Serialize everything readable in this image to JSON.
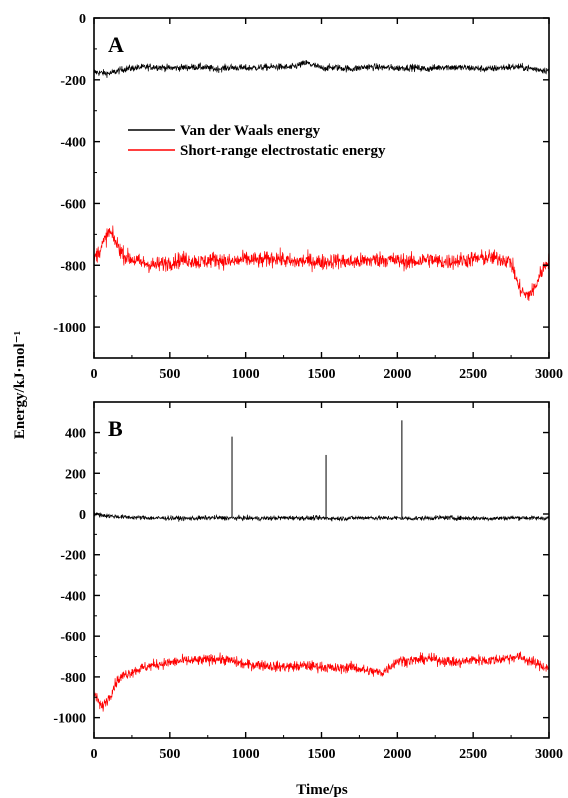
{
  "figure": {
    "ylabel": "Energy/kJ·mol⁻¹",
    "xlabel": "Time/ps"
  },
  "legend": {
    "items": [
      {
        "label": "Van der Waals energy",
        "color": "#000000"
      },
      {
        "label": "Short-range electrostatic energy",
        "color": "#ff0000"
      }
    ]
  },
  "chart_data": [
    {
      "type": "line",
      "panel_label": "A",
      "xlim": [
        0,
        3000
      ],
      "ylim": [
        -1100,
        0
      ],
      "xticks": [
        0,
        500,
        1000,
        1500,
        2000,
        2500,
        3000
      ],
      "yticks": [
        0,
        -200,
        -400,
        -600,
        -800,
        -1000
      ],
      "grid": false,
      "legend_position": "upper-left",
      "series": [
        {
          "name": "Van der Waals energy",
          "color": "#000000",
          "x": [
            0,
            100,
            200,
            300,
            400,
            500,
            600,
            700,
            800,
            900,
            1000,
            1100,
            1200,
            1300,
            1400,
            1500,
            1600,
            1700,
            1800,
            1900,
            2000,
            2100,
            2200,
            2300,
            2400,
            2500,
            2600,
            2700,
            2800,
            2900,
            3000
          ],
          "y": [
            -175,
            -180,
            -165,
            -160,
            -158,
            -162,
            -160,
            -158,
            -165,
            -160,
            -162,
            -160,
            -158,
            -160,
            -145,
            -162,
            -160,
            -165,
            -158,
            -160,
            -162,
            -160,
            -165,
            -158,
            -160,
            -162,
            -165,
            -160,
            -158,
            -165,
            -170
          ]
        },
        {
          "name": "Short-range electrostatic energy",
          "color": "#ff0000",
          "x": [
            0,
            50,
            100,
            150,
            200,
            300,
            400,
            500,
            600,
            700,
            800,
            900,
            1000,
            1100,
            1200,
            1300,
            1400,
            1500,
            1600,
            1700,
            1800,
            1900,
            2000,
            2100,
            2200,
            2300,
            2400,
            2500,
            2600,
            2700,
            2750,
            2800,
            2850,
            2900,
            2950,
            3000
          ],
          "y": [
            -780,
            -740,
            -690,
            -730,
            -770,
            -790,
            -800,
            -790,
            -780,
            -790,
            -780,
            -790,
            -780,
            -785,
            -775,
            -790,
            -785,
            -790,
            -785,
            -790,
            -785,
            -780,
            -785,
            -790,
            -780,
            -790,
            -785,
            -780,
            -775,
            -780,
            -790,
            -870,
            -900,
            -880,
            -820,
            -780
          ]
        }
      ]
    },
    {
      "type": "line",
      "panel_label": "B",
      "xlim": [
        0,
        3000
      ],
      "ylim": [
        -1100,
        550
      ],
      "xticks": [
        0,
        500,
        1000,
        1500,
        2000,
        2500,
        3000
      ],
      "yticks": [
        400,
        200,
        0,
        -200,
        -400,
        -600,
        -800,
        -1000
      ],
      "grid": false,
      "series": [
        {
          "name": "Van der Waals energy",
          "color": "#000000",
          "x": [
            0,
            100,
            200,
            300,
            400,
            500,
            600,
            700,
            800,
            900,
            1000,
            1100,
            1200,
            1300,
            1400,
            1500,
            1600,
            1700,
            1800,
            1900,
            2000,
            2100,
            2200,
            2300,
            2400,
            2500,
            2600,
            2700,
            2800,
            2900,
            3000
          ],
          "y": [
            0,
            -10,
            -15,
            -18,
            -20,
            -20,
            -22,
            -20,
            -18,
            -20,
            -20,
            -22,
            -20,
            -18,
            -20,
            -20,
            -22,
            -20,
            -18,
            -20,
            -20,
            -22,
            -20,
            -18,
            -20,
            -20,
            -22,
            -20,
            -18,
            -20,
            -20
          ],
          "spikes": [
            {
              "x": 910,
              "y": 380
            },
            {
              "x": 1530,
              "y": 290
            },
            {
              "x": 2030,
              "y": 460
            }
          ]
        },
        {
          "name": "Short-range electrostatic energy",
          "color": "#ff0000",
          "x": [
            0,
            50,
            100,
            150,
            200,
            300,
            400,
            500,
            600,
            700,
            800,
            900,
            1000,
            1100,
            1200,
            1300,
            1400,
            1500,
            1600,
            1700,
            1800,
            1900,
            2000,
            2100,
            2200,
            2300,
            2400,
            2500,
            2600,
            2700,
            2800,
            2900,
            3000
          ],
          "y": [
            -880,
            -950,
            -900,
            -820,
            -790,
            -760,
            -740,
            -730,
            -720,
            -720,
            -710,
            -720,
            -740,
            -740,
            -750,
            -750,
            -745,
            -750,
            -760,
            -750,
            -770,
            -780,
            -720,
            -720,
            -710,
            -720,
            -730,
            -715,
            -720,
            -710,
            -700,
            -730,
            -760
          ]
        }
      ]
    }
  ]
}
